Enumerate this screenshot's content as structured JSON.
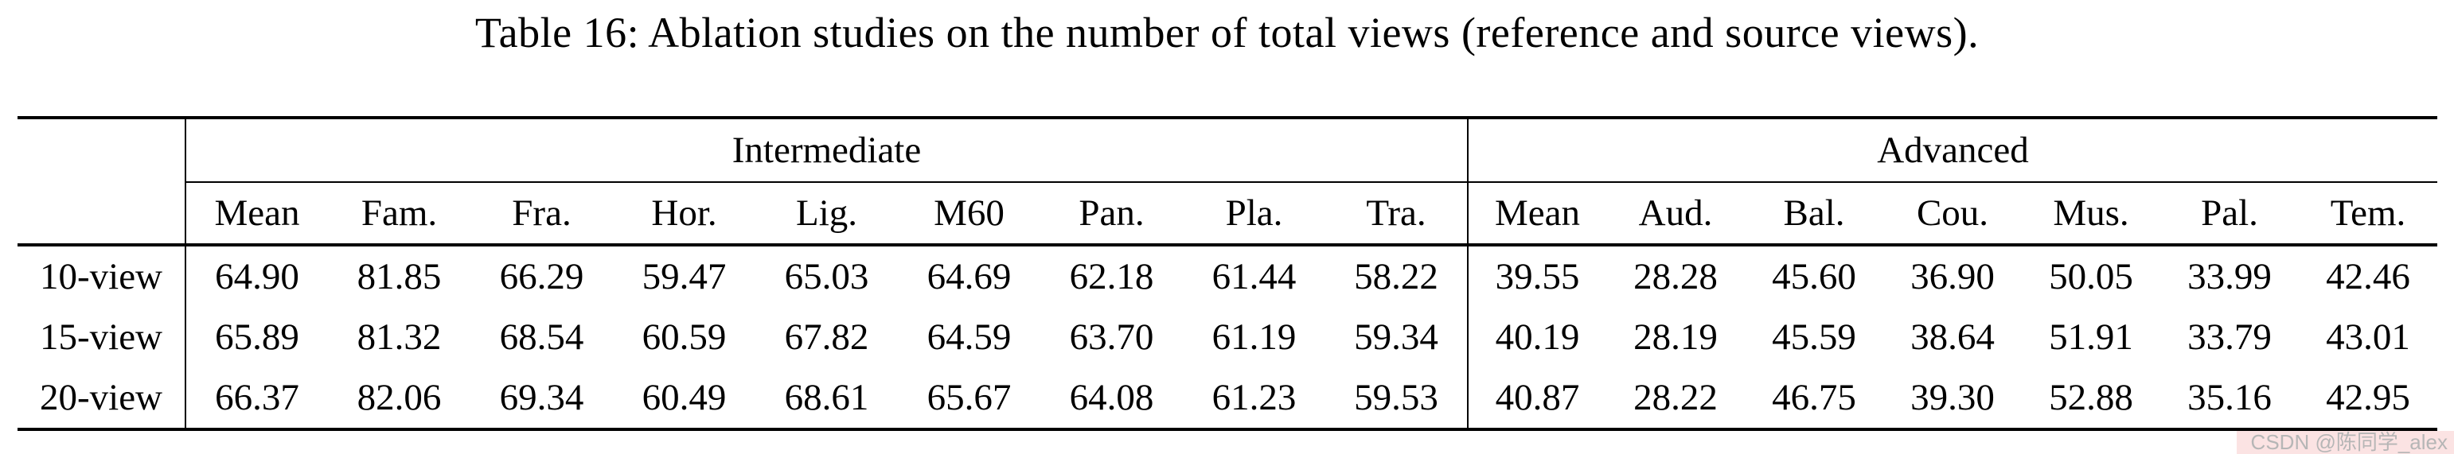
{
  "page": {
    "title": "Table 16: Ablation studies on the number of total views (reference and source views)."
  },
  "table": {
    "groups": [
      {
        "label": "Intermediate",
        "span": 9
      },
      {
        "label": "Advanced",
        "span": 7
      }
    ],
    "columns": [
      "Mean",
      "Fam.",
      "Fra.",
      "Hor.",
      "Lig.",
      "M60",
      "Pan.",
      "Pla.",
      "Tra.",
      "Mean",
      "Aud.",
      "Bal.",
      "Cou.",
      "Mus.",
      "Pal.",
      "Tem."
    ],
    "rows": [
      {
        "label": "10-view",
        "values": [
          "64.90",
          "81.85",
          "66.29",
          "59.47",
          "65.03",
          "64.69",
          "62.18",
          "61.44",
          "58.22",
          "39.55",
          "28.28",
          "45.60",
          "36.90",
          "50.05",
          "33.99",
          "42.46"
        ],
        "bold": [
          false,
          false,
          false,
          false,
          false,
          false,
          false,
          true,
          false,
          false,
          true,
          false,
          false,
          false,
          false,
          false
        ]
      },
      {
        "label": "15-view",
        "values": [
          "65.89",
          "81.32",
          "68.54",
          "60.59",
          "67.82",
          "64.59",
          "63.70",
          "61.19",
          "59.34",
          "40.19",
          "28.19",
          "45.59",
          "38.64",
          "51.91",
          "33.79",
          "43.01"
        ],
        "bold": [
          false,
          false,
          false,
          true,
          false,
          false,
          false,
          false,
          false,
          false,
          false,
          false,
          false,
          false,
          false,
          true
        ]
      },
      {
        "label": "20-view",
        "values": [
          "66.37",
          "82.06",
          "69.34",
          "60.49",
          "68.61",
          "65.67",
          "64.08",
          "61.23",
          "59.53",
          "40.87",
          "28.22",
          "46.75",
          "39.30",
          "52.88",
          "35.16",
          "42.95"
        ],
        "bold": [
          true,
          true,
          true,
          false,
          true,
          true,
          true,
          false,
          true,
          true,
          false,
          true,
          true,
          true,
          true,
          false
        ]
      }
    ],
    "layout": {
      "label_col_width": 211,
      "intermediate_col_width": 179,
      "advanced_col_width": 174
    }
  },
  "watermark": {
    "text": "CSDN @陈同学_alex",
    "bg_color": "#fbe3e3",
    "text_color": "#b6b6b6"
  }
}
